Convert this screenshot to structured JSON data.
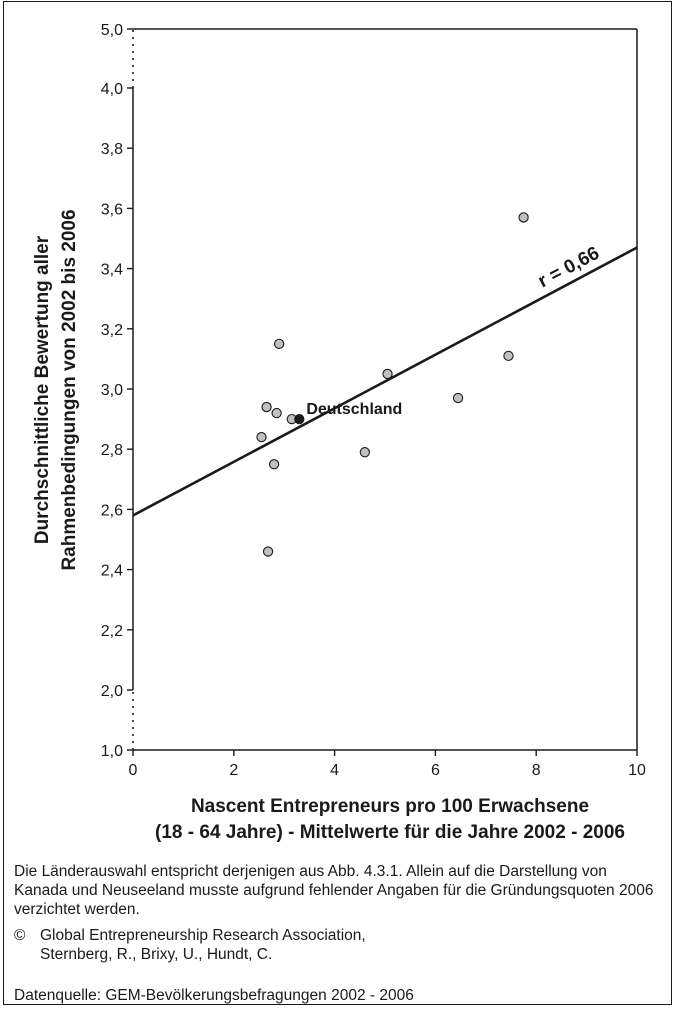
{
  "chart_data": {
    "type": "scatter",
    "xlabel_lines": [
      "Nascent Entrepreneurs pro 100 Erwachsene",
      "(18 - 64 Jahre) - Mittelwerte für die Jahre 2002 - 2006"
    ],
    "ylabel_lines": [
      "Durchschnittliche Bewertung aller",
      "Rahmenbedingungen von 2002 bis 2006"
    ],
    "xlim": [
      0,
      10
    ],
    "ylim": [
      1.0,
      5.0
    ],
    "axis_break": "y-axis broken between 1,0 and 2,0 and between 4,0 and 5,0",
    "x_ticks": [
      0,
      2,
      4,
      6,
      8,
      10
    ],
    "x_tick_labels": [
      "0",
      "2",
      "4",
      "6",
      "8",
      "10"
    ],
    "y_ticks": [
      1.0,
      2.0,
      2.2,
      2.4,
      2.6,
      2.8,
      3.0,
      3.2,
      3.4,
      3.6,
      3.8,
      4.0,
      5.0
    ],
    "y_tick_labels": [
      "1,0",
      "2,0",
      "2,2",
      "2,4",
      "2,6",
      "2,8",
      "3,0",
      "3,2",
      "3,4",
      "3,6",
      "3,8",
      "4,0",
      "5,0"
    ],
    "points": [
      {
        "x": 2.55,
        "y": 2.84
      },
      {
        "x": 2.65,
        "y": 2.94
      },
      {
        "x": 2.68,
        "y": 2.46
      },
      {
        "x": 2.8,
        "y": 2.75
      },
      {
        "x": 2.85,
        "y": 2.92
      },
      {
        "x": 2.9,
        "y": 3.15
      },
      {
        "x": 3.15,
        "y": 2.9
      },
      {
        "x": 4.6,
        "y": 2.79
      },
      {
        "x": 5.05,
        "y": 3.05
      },
      {
        "x": 6.45,
        "y": 2.97
      },
      {
        "x": 7.45,
        "y": 3.11
      },
      {
        "x": 7.75,
        "y": 3.57
      }
    ],
    "highlight": {
      "label": "Deutschland",
      "x": 3.3,
      "y": 2.9
    },
    "trendline": {
      "x": [
        0,
        10
      ],
      "y": [
        2.58,
        3.47
      ],
      "label": "r = 0,66"
    },
    "grid": false,
    "colors": {
      "point_fill": "#c0c0c0",
      "highlight_fill": "#1a1a1a",
      "line": "#1a1a1a"
    }
  },
  "notes": {
    "selection": "Die Länderauswahl entspricht derjenigen aus Abb. 4.3.1. Allein auf die Darstellung von Kanada und Neuseeland musste aufgrund fehlender Angaben für die Gründungsquoten 2006 verzichtet werden.",
    "copyright_symbol": "©",
    "copyright_line1": "Global Entrepreneurship Research Association,",
    "copyright_line2": "Sternberg, R., Brixy, U., Hundt, C.",
    "source": "Datenquelle: GEM-Bevölkerungsbefragungen 2002 - 2006"
  }
}
